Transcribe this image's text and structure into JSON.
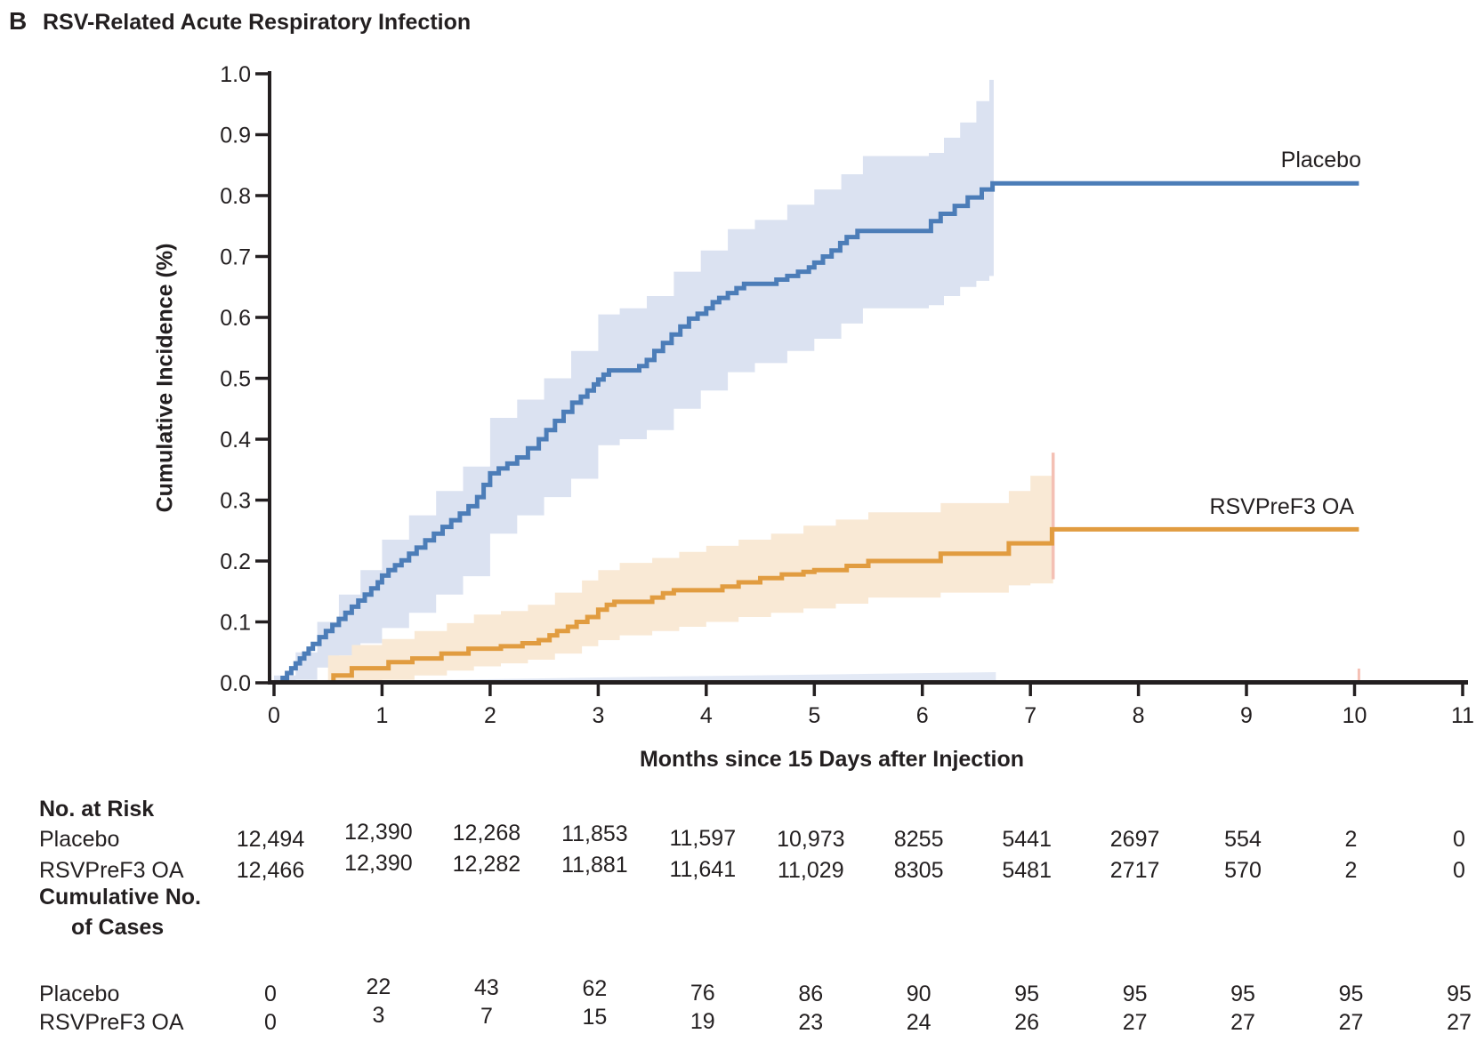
{
  "panel": {
    "letter": "B",
    "title": "RSV-Related Acute Respiratory Infection"
  },
  "axes": {
    "y_label": "Cumulative Incidence (%)",
    "x_label": "Months since 15 Days after Injection",
    "y_ticks": [
      "1.0",
      "0.9",
      "0.8",
      "0.7",
      "0.6",
      "0.5",
      "0.4",
      "0.3",
      "0.2",
      "0.1",
      "0.0"
    ],
    "x_ticks": [
      "0",
      "1",
      "2",
      "3",
      "4",
      "5",
      "6",
      "7",
      "8",
      "9",
      "10",
      "11"
    ],
    "y_range": [
      0.0,
      1.0
    ],
    "x_range": [
      0,
      11
    ]
  },
  "series_labels": {
    "placebo": "Placebo",
    "vaccine": "RSVPreF3 OA"
  },
  "colors": {
    "placebo_line": "#4c7db8",
    "placebo_band": "#dbe2f1",
    "vaccine_line": "#e19c40",
    "vaccine_band": "#f9e9d5",
    "censor_pink": "#f4c0b4",
    "axis": "#231f20",
    "artifact_strip": "#ccd7ed"
  },
  "chart_data": {
    "type": "line",
    "subtype": "kaplan-meier-cumulative-incidence",
    "title": "RSV-Related Acute Respiratory Infection",
    "xlabel": "Months since 15 Days after Injection",
    "ylabel": "Cumulative Incidence (%)",
    "xlim": [
      0,
      11
    ],
    "ylim": [
      0.0,
      1.0
    ],
    "grid": false,
    "legend_position": "end-of-line labels",
    "curve_end_x": 10.04,
    "series": [
      {
        "name": "Placebo",
        "final_value": 0.82,
        "monthly_values": [
          0,
          0.176,
          0.344,
          0.5,
          0.615,
          0.69,
          0.755,
          0.82,
          0.82,
          0.82,
          0.82
        ],
        "steps": [
          [
            0.08,
            0.008
          ],
          [
            0.12,
            0.016
          ],
          [
            0.16,
            0.024
          ],
          [
            0.2,
            0.032
          ],
          [
            0.24,
            0.04
          ],
          [
            0.28,
            0.048
          ],
          [
            0.32,
            0.056
          ],
          [
            0.36,
            0.064
          ],
          [
            0.42,
            0.075
          ],
          [
            0.48,
            0.085
          ],
          [
            0.54,
            0.095
          ],
          [
            0.6,
            0.105
          ],
          [
            0.66,
            0.115
          ],
          [
            0.72,
            0.125
          ],
          [
            0.78,
            0.135
          ],
          [
            0.84,
            0.145
          ],
          [
            0.9,
            0.155
          ],
          [
            0.96,
            0.165
          ],
          [
            1.0,
            0.176
          ],
          [
            1.06,
            0.185
          ],
          [
            1.12,
            0.193
          ],
          [
            1.18,
            0.201
          ],
          [
            1.25,
            0.212
          ],
          [
            1.32,
            0.222
          ],
          [
            1.4,
            0.234
          ],
          [
            1.48,
            0.245
          ],
          [
            1.56,
            0.256
          ],
          [
            1.64,
            0.267
          ],
          [
            1.72,
            0.278
          ],
          [
            1.8,
            0.29
          ],
          [
            1.88,
            0.305
          ],
          [
            1.94,
            0.325
          ],
          [
            2.0,
            0.344
          ],
          [
            2.08,
            0.352
          ],
          [
            2.16,
            0.36
          ],
          [
            2.25,
            0.37
          ],
          [
            2.35,
            0.385
          ],
          [
            2.45,
            0.4
          ],
          [
            2.52,
            0.415
          ],
          [
            2.6,
            0.43
          ],
          [
            2.68,
            0.445
          ],
          [
            2.76,
            0.46
          ],
          [
            2.84,
            0.47
          ],
          [
            2.9,
            0.48
          ],
          [
            2.96,
            0.49
          ],
          [
            3.0,
            0.498
          ],
          [
            3.05,
            0.506
          ],
          [
            3.1,
            0.513
          ],
          [
            3.38,
            0.52
          ],
          [
            3.45,
            0.53
          ],
          [
            3.52,
            0.545
          ],
          [
            3.6,
            0.558
          ],
          [
            3.68,
            0.572
          ],
          [
            3.76,
            0.585
          ],
          [
            3.84,
            0.598
          ],
          [
            3.92,
            0.606
          ],
          [
            4.0,
            0.615
          ],
          [
            4.06,
            0.625
          ],
          [
            4.12,
            0.632
          ],
          [
            4.2,
            0.64
          ],
          [
            4.28,
            0.648
          ],
          [
            4.35,
            0.655
          ],
          [
            4.65,
            0.662
          ],
          [
            4.75,
            0.668
          ],
          [
            4.85,
            0.675
          ],
          [
            4.95,
            0.682
          ],
          [
            5.0,
            0.69
          ],
          [
            5.08,
            0.7
          ],
          [
            5.16,
            0.71
          ],
          [
            5.24,
            0.722
          ],
          [
            5.3,
            0.732
          ],
          [
            5.4,
            0.742
          ],
          [
            6.08,
            0.758
          ],
          [
            6.17,
            0.77
          ],
          [
            6.3,
            0.783
          ],
          [
            6.42,
            0.797
          ],
          [
            6.55,
            0.81
          ],
          [
            6.65,
            0.82
          ]
        ],
        "band_end_x": 6.66,
        "band": [
          [
            0.0,
            0.0,
            0.012
          ],
          [
            0.2,
            0.005,
            0.05
          ],
          [
            0.4,
            0.025,
            0.1
          ],
          [
            0.6,
            0.045,
            0.145
          ],
          [
            0.8,
            0.065,
            0.185
          ],
          [
            1.0,
            0.09,
            0.235
          ],
          [
            1.25,
            0.115,
            0.275
          ],
          [
            1.5,
            0.145,
            0.315
          ],
          [
            1.75,
            0.175,
            0.355
          ],
          [
            2.0,
            0.245,
            0.435
          ],
          [
            2.25,
            0.275,
            0.465
          ],
          [
            2.5,
            0.305,
            0.5
          ],
          [
            2.75,
            0.335,
            0.545
          ],
          [
            3.0,
            0.39,
            0.605
          ],
          [
            3.2,
            0.4,
            0.615
          ],
          [
            3.45,
            0.415,
            0.635
          ],
          [
            3.7,
            0.45,
            0.675
          ],
          [
            3.95,
            0.48,
            0.71
          ],
          [
            4.2,
            0.51,
            0.745
          ],
          [
            4.45,
            0.525,
            0.76
          ],
          [
            4.75,
            0.545,
            0.785
          ],
          [
            5.0,
            0.565,
            0.81
          ],
          [
            5.25,
            0.59,
            0.835
          ],
          [
            5.45,
            0.615,
            0.865
          ],
          [
            6.06,
            0.62,
            0.87
          ],
          [
            6.2,
            0.635,
            0.895
          ],
          [
            6.35,
            0.65,
            0.92
          ],
          [
            6.5,
            0.66,
            0.955
          ],
          [
            6.62,
            0.668,
            0.99
          ],
          [
            6.66,
            0.67,
            1.005
          ]
        ]
      },
      {
        "name": "RSVPreF3 OA",
        "final_value": 0.25,
        "monthly_values": [
          0,
          0.024,
          0.056,
          0.12,
          0.152,
          0.185,
          0.2,
          0.23,
          0.25,
          0.25,
          0.25
        ],
        "steps": [
          [
            0.55,
            0.012
          ],
          [
            0.72,
            0.024
          ],
          [
            1.06,
            0.034
          ],
          [
            1.28,
            0.04
          ],
          [
            1.55,
            0.048
          ],
          [
            1.8,
            0.056
          ],
          [
            2.1,
            0.06
          ],
          [
            2.3,
            0.065
          ],
          [
            2.45,
            0.07
          ],
          [
            2.55,
            0.078
          ],
          [
            2.62,
            0.085
          ],
          [
            2.72,
            0.092
          ],
          [
            2.8,
            0.1
          ],
          [
            2.9,
            0.108
          ],
          [
            3.0,
            0.12
          ],
          [
            3.08,
            0.128
          ],
          [
            3.15,
            0.133
          ],
          [
            3.5,
            0.14
          ],
          [
            3.6,
            0.147
          ],
          [
            3.7,
            0.152
          ],
          [
            4.15,
            0.158
          ],
          [
            4.3,
            0.165
          ],
          [
            4.5,
            0.172
          ],
          [
            4.7,
            0.178
          ],
          [
            4.9,
            0.182
          ],
          [
            5.0,
            0.185
          ],
          [
            5.3,
            0.192
          ],
          [
            5.5,
            0.2
          ],
          [
            6.17,
            0.212
          ],
          [
            6.8,
            0.229
          ],
          [
            7.2,
            0.252
          ]
        ],
        "band_end_x": 7.21,
        "band": [
          [
            0.5,
            0.0,
            0.045
          ],
          [
            0.72,
            0.002,
            0.062
          ],
          [
            1.0,
            0.005,
            0.072
          ],
          [
            1.3,
            0.012,
            0.085
          ],
          [
            1.6,
            0.02,
            0.098
          ],
          [
            1.85,
            0.027,
            0.112
          ],
          [
            2.1,
            0.032,
            0.118
          ],
          [
            2.35,
            0.038,
            0.128
          ],
          [
            2.6,
            0.048,
            0.148
          ],
          [
            2.85,
            0.06,
            0.168
          ],
          [
            3.0,
            0.07,
            0.185
          ],
          [
            3.2,
            0.078,
            0.197
          ],
          [
            3.5,
            0.085,
            0.205
          ],
          [
            3.75,
            0.092,
            0.215
          ],
          [
            4.0,
            0.1,
            0.225
          ],
          [
            4.3,
            0.108,
            0.235
          ],
          [
            4.6,
            0.115,
            0.245
          ],
          [
            4.9,
            0.122,
            0.258
          ],
          [
            5.2,
            0.13,
            0.268
          ],
          [
            5.5,
            0.14,
            0.28
          ],
          [
            6.17,
            0.148,
            0.295
          ],
          [
            6.8,
            0.16,
            0.315
          ],
          [
            7.0,
            0.163,
            0.34
          ],
          [
            7.21,
            0.17,
            0.378
          ]
        ]
      }
    ],
    "annotations": {
      "vaccine_ci_end_line": {
        "x": 7.21,
        "y_from": 0.17,
        "y_to": 0.378
      },
      "axis_censor_tick_x": 10.04
    }
  },
  "risk_table": {
    "header": "No. at Risk",
    "rows": [
      {
        "label": "Placebo",
        "values": [
          "12,494",
          "12,390",
          "12,268",
          "11,853",
          "11,597",
          "10,973",
          "8255",
          "5441",
          "2697",
          "554",
          "2",
          "0"
        ]
      },
      {
        "label": "RSVPreF3 OA",
        "values": [
          "12,466",
          "12,390",
          "12,282",
          "11,881",
          "11,641",
          "11,029",
          "8305",
          "5481",
          "2717",
          "570",
          "2",
          "0"
        ]
      }
    ]
  },
  "cases_table": {
    "header_line1": "Cumulative No.",
    "header_line2": "of Cases",
    "rows": [
      {
        "label": "Placebo",
        "values": [
          "0",
          "22",
          "43",
          "62",
          "76",
          "86",
          "90",
          "95",
          "95",
          "95",
          "95",
          "95"
        ]
      },
      {
        "label": "RSVPreF3 OA",
        "values": [
          "0",
          "3",
          "7",
          "15",
          "19",
          "23",
          "24",
          "26",
          "27",
          "27",
          "27",
          "27"
        ]
      }
    ]
  }
}
